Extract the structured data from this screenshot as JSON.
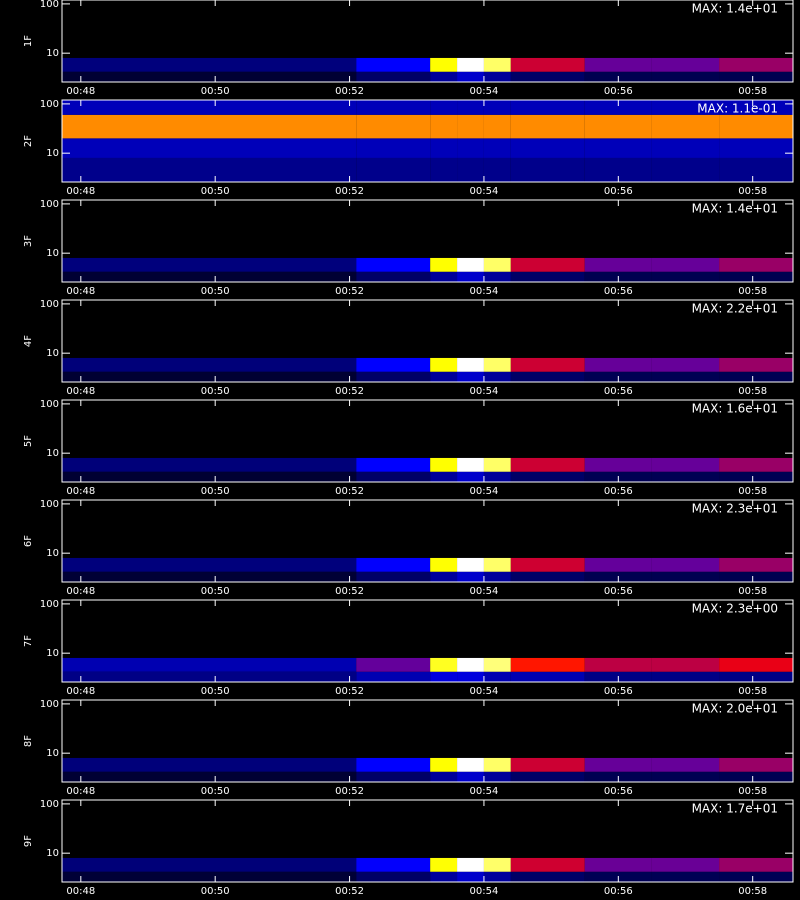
{
  "chart_data": [
    {
      "type": "heatmap",
      "ylabel": "1F",
      "max_label": "MAX: 1.4e+01",
      "max": 14,
      "xlim": [
        47.72,
        58.6
      ],
      "ylim": [
        2.6,
        120
      ],
      "log_y": true,
      "xticks": [
        {
          "value": 48,
          "label": "00:48"
        },
        {
          "value": 50,
          "label": "00:50"
        },
        {
          "value": 52,
          "label": "00:52"
        },
        {
          "value": 54,
          "label": "00:54"
        },
        {
          "value": 56,
          "label": "00:56"
        },
        {
          "value": 58,
          "label": "00:58"
        }
      ],
      "yticks": [
        10,
        100
      ],
      "colorscale": [
        "#000000",
        "#0000ff",
        "#ff0000",
        "#ffff00",
        "#ffffff"
      ],
      "x_edges": [
        47.72,
        52.1,
        53.2,
        53.6,
        54.0,
        54.4,
        55.5,
        56.5,
        57.5,
        58.6
      ],
      "y_edges": [
        2.6,
        4.2,
        8
      ],
      "values": [
        [
          0.7,
          1.4,
          2.1,
          2.8,
          2.1,
          1.4,
          1.1,
          1.1,
          1.1
        ],
        [
          1.7,
          3.5,
          10.5,
          14,
          11.9,
          6.3,
          4.9,
          4.9,
          5.6
        ]
      ]
    },
    {
      "type": "heatmap",
      "ylabel": "2F",
      "max_label": "MAX: 1.1e-01",
      "max": 0.11,
      "xlim": [
        47.72,
        58.6
      ],
      "ylim": [
        2.6,
        120
      ],
      "log_y": true,
      "xticks": [
        {
          "value": 48,
          "label": "00:48"
        },
        {
          "value": 50,
          "label": "00:50"
        },
        {
          "value": 52,
          "label": "00:52"
        },
        {
          "value": 54,
          "label": "00:54"
        },
        {
          "value": 56,
          "label": "00:56"
        },
        {
          "value": 58,
          "label": "00:58"
        }
      ],
      "yticks": [
        10,
        100
      ],
      "colorscale": [
        "#000000",
        "#0000ff",
        "#ff0000",
        "#ffff00",
        "#ffffff"
      ],
      "x_edges": [
        47.72,
        52.1,
        53.2,
        53.6,
        54.0,
        54.4,
        55.5,
        56.5,
        57.5,
        58.6
      ],
      "y_edges": [
        2.6,
        8,
        20,
        60,
        120
      ],
      "values": [
        [
          0.015,
          0.015,
          0.015,
          0.015,
          0.015,
          0.015,
          0.015,
          0.015,
          0.015
        ],
        [
          0.02,
          0.02,
          0.02,
          0.02,
          0.02,
          0.02,
          0.02,
          0.02,
          0.02
        ],
        [
          0.07,
          0.07,
          0.07,
          0.07,
          0.07,
          0.07,
          0.07,
          0.07,
          0.07
        ],
        [
          0.02,
          0.02,
          0.02,
          0.02,
          0.02,
          0.02,
          0.02,
          0.02,
          0.02
        ]
      ]
    },
    {
      "type": "heatmap",
      "ylabel": "3F",
      "max_label": "MAX: 1.4e+01",
      "max": 14,
      "xlim": [
        47.72,
        58.6
      ],
      "ylim": [
        2.6,
        120
      ],
      "log_y": true,
      "xticks": [
        {
          "value": 48,
          "label": "00:48"
        },
        {
          "value": 50,
          "label": "00:50"
        },
        {
          "value": 52,
          "label": "00:52"
        },
        {
          "value": 54,
          "label": "00:54"
        },
        {
          "value": 56,
          "label": "00:56"
        },
        {
          "value": 58,
          "label": "00:58"
        }
      ],
      "yticks": [
        10,
        100
      ],
      "colorscale": [
        "#000000",
        "#0000ff",
        "#ff0000",
        "#ffff00",
        "#ffffff"
      ],
      "x_edges": [
        47.72,
        52.1,
        53.2,
        53.6,
        54.0,
        54.4,
        55.5,
        56.5,
        57.5,
        58.6
      ],
      "y_edges": [
        2.6,
        4.2,
        8
      ],
      "values": [
        [
          0.7,
          1.4,
          2.1,
          2.8,
          2.1,
          1.4,
          1.1,
          1.1,
          1.1
        ],
        [
          1.7,
          3.5,
          10.5,
          14,
          11.9,
          6.3,
          4.9,
          4.9,
          5.6
        ]
      ]
    },
    {
      "type": "heatmap",
      "ylabel": "4F",
      "max_label": "MAX: 2.2e+01",
      "max": 22,
      "xlim": [
        47.72,
        58.6
      ],
      "ylim": [
        2.6,
        120
      ],
      "log_y": true,
      "xticks": [
        {
          "value": 48,
          "label": "00:48"
        },
        {
          "value": 50,
          "label": "00:50"
        },
        {
          "value": 52,
          "label": "00:52"
        },
        {
          "value": 54,
          "label": "00:54"
        },
        {
          "value": 56,
          "label": "00:56"
        },
        {
          "value": 58,
          "label": "00:58"
        }
      ],
      "yticks": [
        10,
        100
      ],
      "colorscale": [
        "#000000",
        "#0000ff",
        "#ff0000",
        "#ffff00",
        "#ffffff"
      ],
      "x_edges": [
        47.72,
        52.1,
        53.2,
        53.6,
        54.0,
        54.4,
        55.5,
        56.5,
        57.5,
        58.6
      ],
      "y_edges": [
        2.6,
        4.2,
        8
      ],
      "values": [
        [
          1.1,
          2.2,
          3.3,
          4.4,
          3.3,
          2.2,
          1.8,
          1.8,
          1.8
        ],
        [
          2.6,
          5.5,
          16.5,
          22,
          18.7,
          9.9,
          7.7,
          7.7,
          8.8
        ]
      ]
    },
    {
      "type": "heatmap",
      "ylabel": "5F",
      "max_label": "MAX: 1.6e+01",
      "max": 16,
      "xlim": [
        47.72,
        58.6
      ],
      "ylim": [
        2.6,
        120
      ],
      "log_y": true,
      "xticks": [
        {
          "value": 48,
          "label": "00:48"
        },
        {
          "value": 50,
          "label": "00:50"
        },
        {
          "value": 52,
          "label": "00:52"
        },
        {
          "value": 54,
          "label": "00:54"
        },
        {
          "value": 56,
          "label": "00:56"
        },
        {
          "value": 58,
          "label": "00:58"
        }
      ],
      "yticks": [
        10,
        100
      ],
      "colorscale": [
        "#000000",
        "#0000ff",
        "#ff0000",
        "#ffff00",
        "#ffffff"
      ],
      "x_edges": [
        47.72,
        52.1,
        53.2,
        53.6,
        54.0,
        54.4,
        55.5,
        56.5,
        57.5,
        58.6
      ],
      "y_edges": [
        2.6,
        4.2,
        8
      ],
      "values": [
        [
          0.8,
          1.6,
          2.4,
          3.2,
          2.4,
          1.6,
          1.3,
          1.3,
          1.3
        ],
        [
          1.9,
          4,
          12,
          16,
          13.6,
          7.2,
          5.6,
          5.6,
          6.4
        ]
      ]
    },
    {
      "type": "heatmap",
      "ylabel": "6F",
      "max_label": "MAX: 2.3e+01",
      "max": 23,
      "xlim": [
        47.72,
        58.6
      ],
      "ylim": [
        2.6,
        120
      ],
      "log_y": true,
      "xticks": [
        {
          "value": 48,
          "label": "00:48"
        },
        {
          "value": 50,
          "label": "00:50"
        },
        {
          "value": 52,
          "label": "00:52"
        },
        {
          "value": 54,
          "label": "00:54"
        },
        {
          "value": 56,
          "label": "00:56"
        },
        {
          "value": 58,
          "label": "00:58"
        }
      ],
      "yticks": [
        10,
        100
      ],
      "colorscale": [
        "#000000",
        "#0000ff",
        "#ff0000",
        "#ffff00",
        "#ffffff"
      ],
      "x_edges": [
        47.72,
        52.1,
        53.2,
        53.6,
        54.0,
        54.4,
        55.5,
        56.5,
        57.5,
        58.6
      ],
      "y_edges": [
        2.6,
        4.2,
        8
      ],
      "values": [
        [
          1.2,
          2.3,
          3.5,
          4.6,
          3.5,
          2.3,
          1.8,
          1.8,
          1.8
        ],
        [
          2.8,
          5.8,
          17.3,
          23,
          19.6,
          10.4,
          8,
          8,
          9.2
        ]
      ]
    },
    {
      "type": "heatmap",
      "ylabel": "7F",
      "max_label": "MAX: 2.3e+00",
      "max": 2.3,
      "xlim": [
        47.72,
        58.6
      ],
      "ylim": [
        2.6,
        120
      ],
      "log_y": true,
      "xticks": [
        {
          "value": 48,
          "label": "00:48"
        },
        {
          "value": 50,
          "label": "00:50"
        },
        {
          "value": 52,
          "label": "00:52"
        },
        {
          "value": 54,
          "label": "00:54"
        },
        {
          "value": 56,
          "label": "00:56"
        },
        {
          "value": 58,
          "label": "00:58"
        }
      ],
      "yticks": [
        10,
        100
      ],
      "colorscale": [
        "#000000",
        "#0000ff",
        "#ff0000",
        "#ffff00",
        "#ffffff"
      ],
      "x_edges": [
        47.72,
        52.1,
        53.2,
        53.6,
        54.0,
        54.4,
        55.5,
        56.5,
        57.5,
        58.6
      ],
      "y_edges": [
        2.6,
        4.2,
        8
      ],
      "values": [
        [
          0.3,
          0.4,
          0.5,
          0.5,
          0.4,
          0.4,
          0.3,
          0.3,
          0.3
        ],
        [
          0.4,
          0.8,
          1.8,
          2.3,
          2,
          1.2,
          1,
          1,
          1.1
        ]
      ]
    },
    {
      "type": "heatmap",
      "ylabel": "8F",
      "max_label": "MAX: 2.0e+01",
      "max": 20,
      "xlim": [
        47.72,
        58.6
      ],
      "ylim": [
        2.6,
        120
      ],
      "log_y": true,
      "xticks": [
        {
          "value": 48,
          "label": "00:48"
        },
        {
          "value": 50,
          "label": "00:50"
        },
        {
          "value": 52,
          "label": "00:52"
        },
        {
          "value": 54,
          "label": "00:54"
        },
        {
          "value": 56,
          "label": "00:56"
        },
        {
          "value": 58,
          "label": "00:58"
        }
      ],
      "yticks": [
        10,
        100
      ],
      "colorscale": [
        "#000000",
        "#0000ff",
        "#ff0000",
        "#ffff00",
        "#ffffff"
      ],
      "x_edges": [
        47.72,
        52.1,
        53.2,
        53.6,
        54.0,
        54.4,
        55.5,
        56.5,
        57.5,
        58.6
      ],
      "y_edges": [
        2.6,
        4.2,
        8
      ],
      "values": [
        [
          1,
          2,
          3,
          4,
          3,
          2,
          1.6,
          1.6,
          1.6
        ],
        [
          2.4,
          5,
          15,
          20,
          17,
          9,
          7,
          7,
          8
        ]
      ]
    },
    {
      "type": "heatmap",
      "ylabel": "9F",
      "max_label": "MAX: 1.7e+01",
      "max": 17,
      "xlim": [
        47.72,
        58.6
      ],
      "ylim": [
        2.6,
        120
      ],
      "log_y": true,
      "xticks": [
        {
          "value": 48,
          "label": "00:48"
        },
        {
          "value": 50,
          "label": "00:50"
        },
        {
          "value": 52,
          "label": "00:52"
        },
        {
          "value": 54,
          "label": "00:54"
        },
        {
          "value": 56,
          "label": "00:56"
        },
        {
          "value": 58,
          "label": "00:58"
        }
      ],
      "yticks": [
        10,
        100
      ],
      "colorscale": [
        "#000000",
        "#0000ff",
        "#ff0000",
        "#ffff00",
        "#ffffff"
      ],
      "x_edges": [
        47.72,
        52.1,
        53.2,
        53.6,
        54.0,
        54.4,
        55.5,
        56.5,
        57.5,
        58.6
      ],
      "y_edges": [
        2.6,
        4.2,
        8
      ],
      "values": [
        [
          0.9,
          1.7,
          2.6,
          3.4,
          2.6,
          1.7,
          1.4,
          1.4,
          1.4
        ],
        [
          2,
          4.3,
          12.8,
          17,
          14.5,
          7.7,
          6,
          6,
          6.8
        ]
      ]
    }
  ]
}
